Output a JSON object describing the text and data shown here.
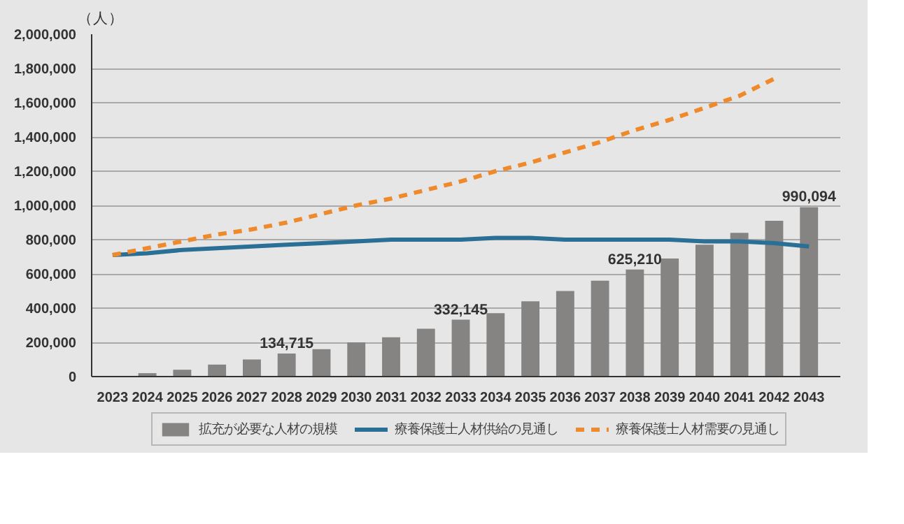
{
  "chart_data": {
    "type": "bar",
    "ylabel": "（人）",
    "categories": [
      "2023",
      "2024",
      "2025",
      "2026",
      "2027",
      "2028",
      "2029",
      "2030",
      "2031",
      "2032",
      "2033",
      "2034",
      "2035",
      "2036",
      "2037",
      "2038",
      "2039",
      "2040",
      "2041",
      "2042",
      "2043"
    ],
    "series": [
      {
        "name": "拡充が必要な人材の規模",
        "color": "#868383",
        "values": [
          null,
          20000,
          40000,
          70000,
          100000,
          134715,
          160000,
          200000,
          230000,
          280000,
          332145,
          370000,
          440000,
          500000,
          560000,
          625210,
          690000,
          770000,
          840000,
          910000,
          990094
        ],
        "value_labels": [
          null,
          null,
          null,
          null,
          null,
          "134,715",
          null,
          null,
          null,
          null,
          "332,145",
          null,
          null,
          null,
          null,
          "625,210",
          null,
          null,
          null,
          null,
          "990,094"
        ]
      },
      {
        "name": "療養保護士人材供給の見通し",
        "type": "line",
        "color": "#2a6f95",
        "line_style": "solid",
        "values": [
          710000,
          720000,
          740000,
          750000,
          760000,
          770000,
          780000,
          790000,
          800000,
          800000,
          800000,
          810000,
          810000,
          800000,
          800000,
          800000,
          800000,
          790000,
          790000,
          780000,
          760000
        ]
      },
      {
        "name": "療養保護士人材需要の見通し",
        "type": "line",
        "color": "#ee8a2c",
        "line_style": "dashed",
        "values": [
          710000,
          750000,
          790000,
          830000,
          860000,
          900000,
          950000,
          1000000,
          1040000,
          1090000,
          1140000,
          1200000,
          1250000,
          1310000,
          1370000,
          1440000,
          1500000,
          1570000,
          1640000,
          1740000,
          null
        ]
      }
    ],
    "ylim": [
      0,
      2000000
    ],
    "yticks": [
      {
        "value": 0,
        "label": "0"
      },
      {
        "value": 200000,
        "label": "200,000"
      },
      {
        "value": 400000,
        "label": "400,000"
      },
      {
        "value": 600000,
        "label": "600,000"
      },
      {
        "value": 800000,
        "label": "800,000"
      },
      {
        "value": 1000000,
        "label": "1,000,000"
      },
      {
        "value": 1200000,
        "label": "1,200,000"
      },
      {
        "value": 1400000,
        "label": "1,400,000"
      },
      {
        "value": 1600000,
        "label": "1,600,000"
      },
      {
        "value": 1800000,
        "label": "1,800,000"
      },
      {
        "value": 2000000,
        "label": "2,000,000"
      }
    ],
    "grid": "y",
    "legend": "bottom"
  }
}
